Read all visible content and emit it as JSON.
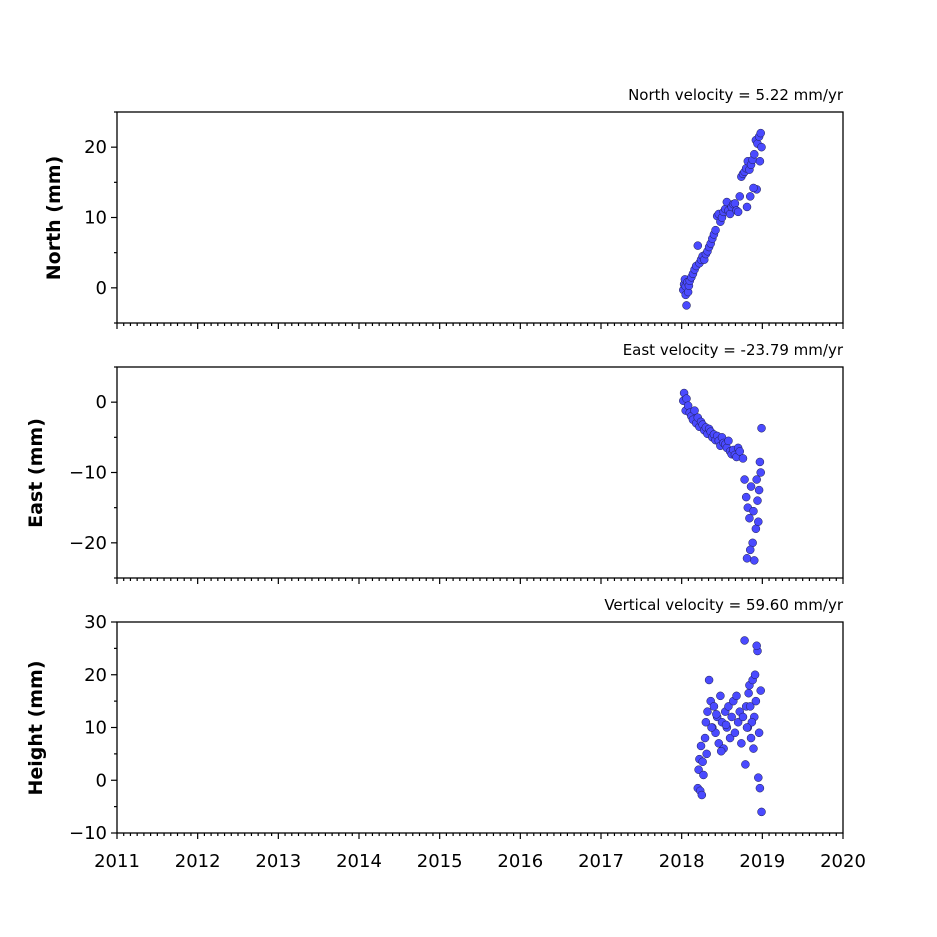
{
  "chart_data": [
    {
      "type": "scatter",
      "title": "North velocity = 5.22 mm/yr",
      "ylabel": "North (mm)",
      "xlim": [
        2011,
        2020
      ],
      "ylim": [
        -5,
        25
      ],
      "yticks": [
        0,
        10,
        20
      ],
      "xticks": [],
      "series": [
        {
          "x": [
            2018.02,
            2018.03,
            2018.04,
            2018.05,
            2018.05,
            2018.06,
            2018.07,
            2018.08,
            2018.09,
            2018.1,
            2018.12,
            2018.14,
            2018.16,
            2018.18,
            2018.2,
            2018.22,
            2018.24,
            2018.26,
            2018.28,
            2018.3,
            2018.32,
            2018.34,
            2018.36,
            2018.38,
            2018.4,
            2018.42,
            2018.44,
            2018.46,
            2018.48,
            2018.5,
            2018.52,
            2018.54,
            2018.56,
            2018.58,
            2018.6,
            2018.62,
            2018.64,
            2018.66,
            2018.68,
            2018.7,
            2018.72,
            2018.74,
            2018.76,
            2018.78,
            2018.8,
            2018.82,
            2018.84,
            2018.86,
            2018.88,
            2018.9,
            2018.92,
            2018.94,
            2018.96,
            2018.98,
            2018.99,
            2018.97,
            2018.93,
            2018.89,
            2018.85,
            2018.81
          ],
          "y": [
            -0.3,
            0.5,
            1.2,
            -1.0,
            0.2,
            -2.5,
            0.8,
            -0.6,
            0.3,
            1.0,
            1.5,
            2.0,
            2.6,
            3.1,
            6.0,
            3.5,
            4.0,
            4.5,
            4.0,
            4.8,
            5.2,
            5.8,
            6.3,
            7.0,
            7.6,
            8.2,
            10.2,
            10.5,
            9.4,
            10.0,
            10.8,
            11.2,
            12.2,
            11.0,
            10.5,
            11.5,
            11.9,
            12.0,
            11.0,
            10.8,
            13.0,
            15.8,
            16.2,
            16.5,
            17.0,
            18.0,
            16.8,
            17.5,
            18.2,
            19.0,
            21.0,
            20.5,
            21.5,
            22.0,
            20.0,
            18.0,
            14.0,
            14.2,
            13.0,
            11.5
          ]
        }
      ]
    },
    {
      "type": "scatter",
      "title": "East velocity = -23.79 mm/yr",
      "ylabel": "East (mm)",
      "xlim": [
        2011,
        2020
      ],
      "ylim": [
        -25,
        5
      ],
      "yticks": [
        -20,
        -10,
        0
      ],
      "xticks": [],
      "series": [
        {
          "x": [
            2018.02,
            2018.03,
            2018.05,
            2018.06,
            2018.08,
            2018.1,
            2018.12,
            2018.14,
            2018.16,
            2018.18,
            2018.2,
            2018.22,
            2018.24,
            2018.26,
            2018.28,
            2018.3,
            2018.32,
            2018.34,
            2018.36,
            2018.38,
            2018.4,
            2018.42,
            2018.44,
            2018.46,
            2018.48,
            2018.5,
            2018.52,
            2018.54,
            2018.56,
            2018.58,
            2018.6,
            2018.62,
            2018.64,
            2018.66,
            2018.68,
            2018.7,
            2018.72,
            2018.76,
            2018.78,
            2018.8,
            2018.82,
            2018.84,
            2018.86,
            2018.88,
            2018.9,
            2018.92,
            2018.94,
            2018.96,
            2018.98,
            2018.99,
            2018.97,
            2018.93,
            2018.89,
            2018.85,
            2018.81,
            2018.95
          ],
          "y": [
            0.2,
            1.3,
            -1.2,
            0.5,
            -0.5,
            -1.5,
            -2.0,
            -2.5,
            -1.2,
            -3.0,
            -2.2,
            -3.5,
            -2.8,
            -3.2,
            -4.0,
            -3.6,
            -4.5,
            -3.8,
            -4.2,
            -5.0,
            -4.6,
            -5.4,
            -4.8,
            -5.5,
            -6.2,
            -5.0,
            -5.8,
            -6.0,
            -6.5,
            -5.5,
            -7.0,
            -7.4,
            -6.8,
            -7.5,
            -7.8,
            -6.5,
            -7.0,
            -8.0,
            -11.0,
            -13.5,
            -15.0,
            -16.5,
            -12.0,
            -20.0,
            -22.5,
            -18.0,
            -14.0,
            -12.5,
            -10.0,
            -3.7,
            -8.5,
            -11.0,
            -15.5,
            -21.0,
            -22.2,
            -17.0
          ]
        }
      ]
    },
    {
      "type": "scatter",
      "title": "Vertical velocity = 59.60 mm/yr",
      "ylabel": "Height (mm)",
      "xlim": [
        2011,
        2020
      ],
      "ylim": [
        -10,
        30
      ],
      "yticks": [
        -10,
        0,
        10,
        20,
        30
      ],
      "xticks": [
        2011,
        2012,
        2013,
        2014,
        2015,
        2016,
        2017,
        2018,
        2019,
        2020
      ],
      "series": [
        {
          "x": [
            2018.2,
            2018.21,
            2018.22,
            2018.23,
            2018.24,
            2018.25,
            2018.27,
            2018.29,
            2018.3,
            2018.32,
            2018.34,
            2018.36,
            2018.38,
            2018.4,
            2018.42,
            2018.44,
            2018.46,
            2018.48,
            2018.5,
            2018.52,
            2018.54,
            2018.56,
            2018.58,
            2018.6,
            2018.62,
            2018.64,
            2018.66,
            2018.68,
            2018.7,
            2018.72,
            2018.74,
            2018.76,
            2018.78,
            2018.8,
            2018.82,
            2018.84,
            2018.86,
            2018.88,
            2018.9,
            2018.92,
            2018.94,
            2018.96,
            2018.98,
            2018.99,
            2018.97,
            2018.95,
            2018.93,
            2018.91,
            2018.89,
            2018.87,
            2018.85,
            2018.83,
            2018.81,
            2018.79,
            2018.26,
            2018.31,
            2018.37,
            2018.43,
            2018.49,
            2018.55
          ],
          "y": [
            -1.5,
            2.0,
            4.0,
            -2.0,
            6.5,
            -2.8,
            1.0,
            8.0,
            11.0,
            13.0,
            19.0,
            15.0,
            10.0,
            14.0,
            9.0,
            12.0,
            7.0,
            16.0,
            11.0,
            6.0,
            13.0,
            10.0,
            14.0,
            8.0,
            12.0,
            15.0,
            9.0,
            16.0,
            11.0,
            13.0,
            7.0,
            12.0,
            26.5,
            14.0,
            10.0,
            18.0,
            8.0,
            19.0,
            12.0,
            15.0,
            24.5,
            9.0,
            17.0,
            -6.0,
            -1.5,
            0.5,
            25.5,
            20.0,
            6.0,
            11.0,
            14.0,
            16.5,
            10.0,
            3.0,
            3.5,
            5.0,
            10.0,
            12.5,
            5.5,
            10.5
          ]
        }
      ]
    }
  ]
}
